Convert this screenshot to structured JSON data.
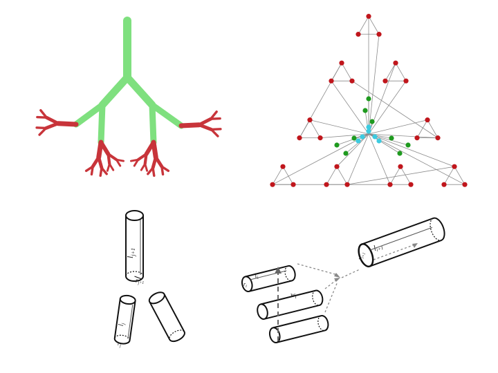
{
  "panels": {
    "tree": {
      "trunk_color": "#7fe07f",
      "branch_color": "#c8343a"
    },
    "network": {
      "outer_node_color": "#c0161c",
      "middle_node_color": "#1f9a1f",
      "core_node_color": "#3ccbe0",
      "edge_color": "#8a8a8a"
    },
    "vessel_split": {
      "parent_length_label": "l",
      "parent_length_sub": "j+1",
      "parent_radius_label": "r",
      "parent_radius_sub": "j+1",
      "child_length_label": "l",
      "child_length_sub": "j",
      "child_radius_label": "r",
      "child_radius_sub": "j"
    },
    "vessel_merge": {
      "input_length_label": "l",
      "input_length_sub": "i",
      "input_radius_label": "r",
      "input_radius_sub": "i",
      "weight_label": "w",
      "weight_sub": "i",
      "output_length_label": "l",
      "output_length_sub": "i+1",
      "output_radius_label": "r",
      "output_radius_sub": "i+1"
    }
  }
}
